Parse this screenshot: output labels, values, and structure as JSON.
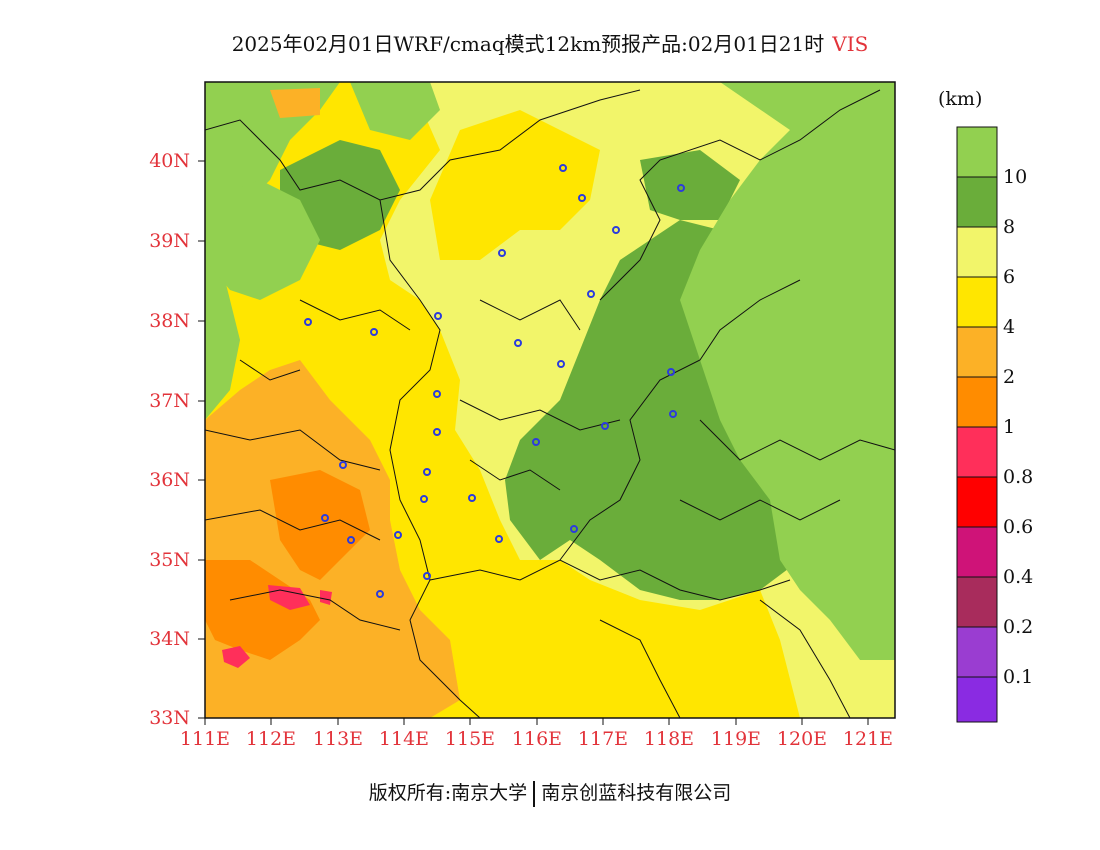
{
  "title": {
    "main": "2025年02月01日WRF/cmaq模式12km预报产品:02月01日21时",
    "variable": "VIS"
  },
  "axes": {
    "lat_labels": [
      "40N",
      "39N",
      "38N",
      "37N",
      "36N",
      "35N",
      "34N",
      "33N"
    ],
    "lon_labels": [
      "111E",
      "112E",
      "113E",
      "114E",
      "115E",
      "116E",
      "117E",
      "118E",
      "119E",
      "120E",
      "121E"
    ]
  },
  "colorbar": {
    "unit": "(km)",
    "labels": [
      "10",
      "8",
      "6",
      "4",
      "2",
      "1",
      "0.8",
      "0.6",
      "0.4",
      "0.2",
      "0.1"
    ],
    "colors": [
      "#92d050",
      "#6aad3a",
      "#f2f56a",
      "#ffe600",
      "#fcb126",
      "#ff8c00",
      "#ff2f5a",
      "#ff0000",
      "#cf1378",
      "#a82c5c",
      "#9a3dd1",
      "#8a2be2"
    ]
  },
  "footer": {
    "left": "版权所有:南京大学",
    "right": "南京创蓝科技有限公司"
  },
  "map": {
    "lon_range": [
      111,
      121.4
    ],
    "lat_range": [
      33,
      41
    ],
    "station_color": "#2c3cdc"
  }
}
